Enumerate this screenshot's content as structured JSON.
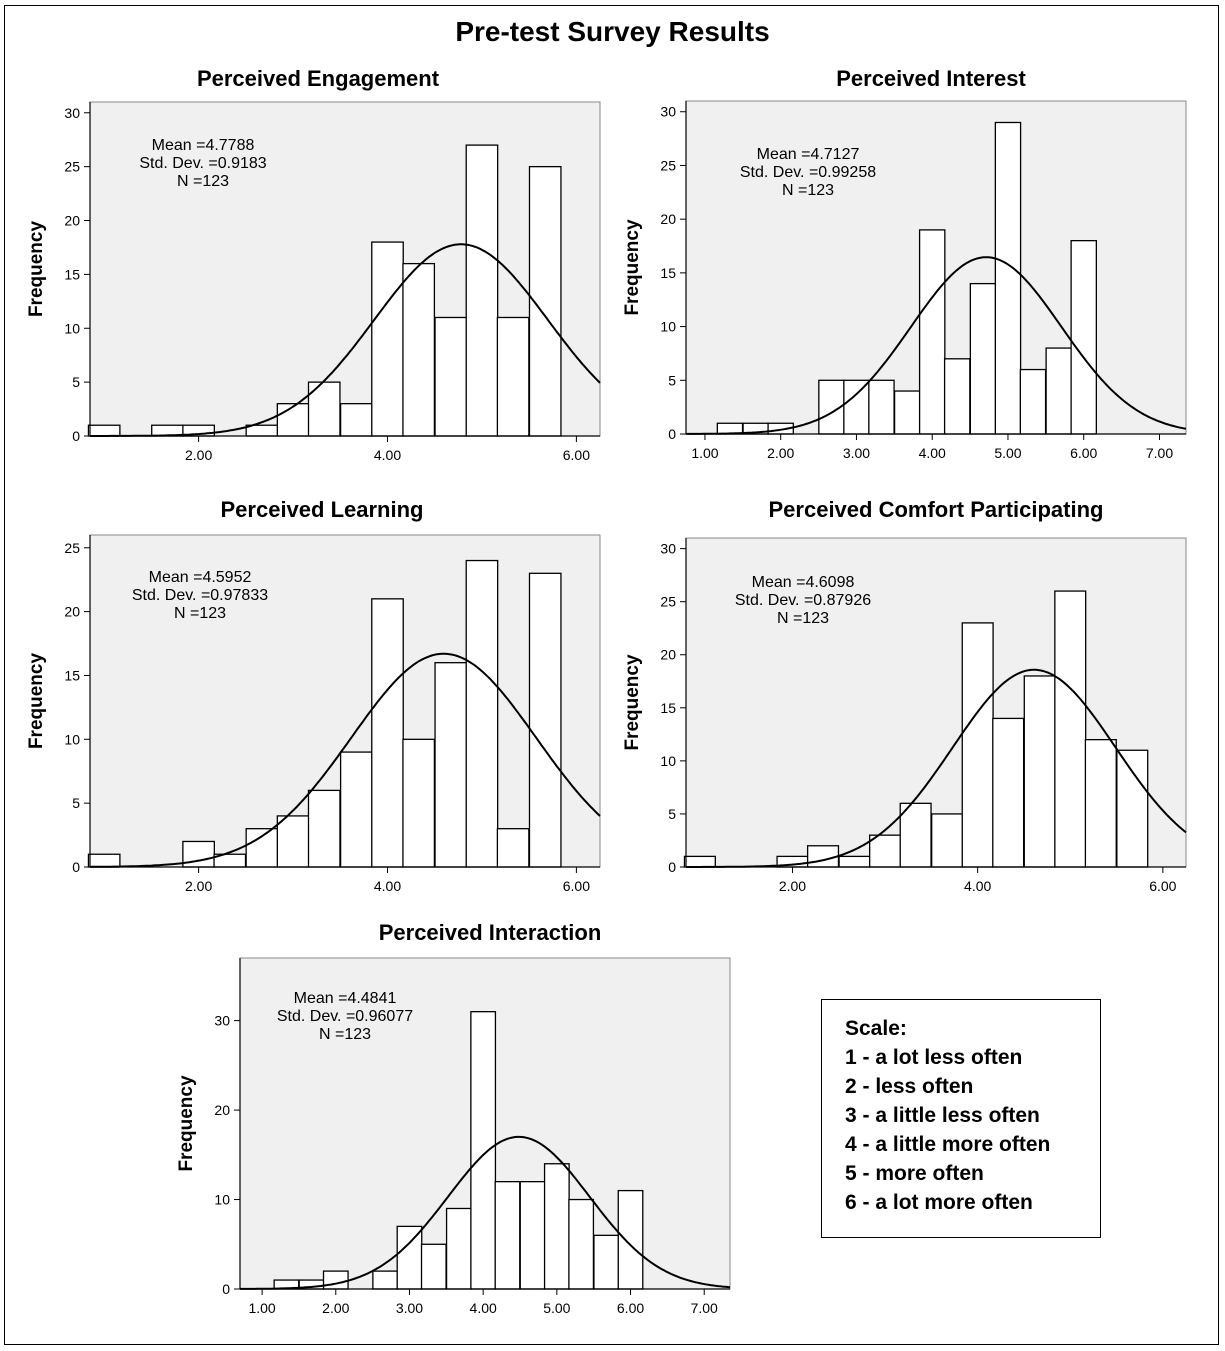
{
  "title": "Pre-test Survey Results",
  "chart_data": [
    {
      "type": "histogram",
      "title": "Perceived Engagement",
      "ylabel": "Frequency",
      "xlim": [
        0.85,
        6.25
      ],
      "ylim": [
        0,
        31
      ],
      "yticks": [
        0,
        5,
        10,
        15,
        20,
        25,
        30
      ],
      "xticks": [
        "2.00",
        "4.00",
        "6.00"
      ],
      "bin_width": 0.333,
      "bins": [
        {
          "x": 1.0,
          "count": 1
        },
        {
          "x": 1.67,
          "count": 1
        },
        {
          "x": 2.0,
          "count": 1
        },
        {
          "x": 2.67,
          "count": 1
        },
        {
          "x": 3.0,
          "count": 3
        },
        {
          "x": 3.33,
          "count": 5
        },
        {
          "x": 3.67,
          "count": 3
        },
        {
          "x": 4.0,
          "count": 18
        },
        {
          "x": 4.33,
          "count": 16
        },
        {
          "x": 4.67,
          "count": 11
        },
        {
          "x": 5.0,
          "count": 27
        },
        {
          "x": 5.33,
          "count": 11
        },
        {
          "x": 5.67,
          "count": 25
        }
      ],
      "stats": {
        "mean": "Mean =4.7788",
        "std": "Std. Dev. =0.9183",
        "n": "N =123"
      },
      "normal_curve": {
        "mean": 4.7788,
        "sd": 0.9183,
        "n": 123
      }
    },
    {
      "type": "histogram",
      "title": "Perceived Interest",
      "ylabel": "Frequency",
      "xlim": [
        0.75,
        7.35
      ],
      "ylim": [
        0,
        31
      ],
      "yticks": [
        0,
        5,
        10,
        15,
        20,
        25,
        30
      ],
      "xticks": [
        "1.00",
        "2.00",
        "3.00",
        "4.00",
        "5.00",
        "6.00",
        "7.00"
      ],
      "bin_width": 0.333,
      "bins": [
        {
          "x": 1.33,
          "count": 1
        },
        {
          "x": 1.67,
          "count": 1
        },
        {
          "x": 2.0,
          "count": 1
        },
        {
          "x": 2.67,
          "count": 5
        },
        {
          "x": 3.0,
          "count": 5
        },
        {
          "x": 3.33,
          "count": 5
        },
        {
          "x": 3.67,
          "count": 4
        },
        {
          "x": 4.0,
          "count": 19
        },
        {
          "x": 4.33,
          "count": 7
        },
        {
          "x": 4.67,
          "count": 14
        },
        {
          "x": 5.0,
          "count": 29
        },
        {
          "x": 5.33,
          "count": 6
        },
        {
          "x": 5.67,
          "count": 8
        },
        {
          "x": 6.0,
          "count": 18
        }
      ],
      "stats": {
        "mean": "Mean =4.7127",
        "std": "Std. Dev. =0.99258",
        "n": "N =123"
      },
      "normal_curve": {
        "mean": 4.7127,
        "sd": 0.99258,
        "n": 123
      }
    },
    {
      "type": "histogram",
      "title": "Perceived Learning",
      "ylabel": "Frequency",
      "xlim": [
        0.85,
        6.25
      ],
      "ylim": [
        0,
        26
      ],
      "yticks": [
        0,
        5,
        10,
        15,
        20,
        25
      ],
      "xticks": [
        "2.00",
        "4.00",
        "6.00"
      ],
      "bin_width": 0.333,
      "bins": [
        {
          "x": 1.0,
          "count": 1
        },
        {
          "x": 2.0,
          "count": 2
        },
        {
          "x": 2.33,
          "count": 1
        },
        {
          "x": 2.67,
          "count": 3
        },
        {
          "x": 3.0,
          "count": 4
        },
        {
          "x": 3.33,
          "count": 6
        },
        {
          "x": 3.67,
          "count": 9
        },
        {
          "x": 4.0,
          "count": 21
        },
        {
          "x": 4.33,
          "count": 10
        },
        {
          "x": 4.67,
          "count": 16
        },
        {
          "x": 5.0,
          "count": 24
        },
        {
          "x": 5.33,
          "count": 3
        },
        {
          "x": 5.67,
          "count": 23
        }
      ],
      "stats": {
        "mean": "Mean =4.5952",
        "std": "Std. Dev. =0.97833",
        "n": "N =123"
      },
      "normal_curve": {
        "mean": 4.5952,
        "sd": 0.97833,
        "n": 123
      }
    },
    {
      "type": "histogram",
      "title": "Perceived Comfort Participating",
      "ylabel": "Frequency",
      "xlim": [
        0.85,
        6.25
      ],
      "ylim": [
        0,
        31
      ],
      "yticks": [
        0,
        5,
        10,
        15,
        20,
        25,
        30
      ],
      "xticks": [
        "2.00",
        "4.00",
        "6.00"
      ],
      "bin_width": 0.333,
      "bins": [
        {
          "x": 1.0,
          "count": 1
        },
        {
          "x": 2.0,
          "count": 1
        },
        {
          "x": 2.33,
          "count": 2
        },
        {
          "x": 2.67,
          "count": 1
        },
        {
          "x": 3.0,
          "count": 3
        },
        {
          "x": 3.33,
          "count": 6
        },
        {
          "x": 3.67,
          "count": 5
        },
        {
          "x": 4.0,
          "count": 23
        },
        {
          "x": 4.33,
          "count": 14
        },
        {
          "x": 4.67,
          "count": 18
        },
        {
          "x": 5.0,
          "count": 26
        },
        {
          "x": 5.33,
          "count": 12
        },
        {
          "x": 5.67,
          "count": 11
        }
      ],
      "stats": {
        "mean": "Mean =4.6098",
        "std": "Std. Dev. =0.87926",
        "n": "N =123"
      },
      "normal_curve": {
        "mean": 4.6098,
        "sd": 0.87926,
        "n": 123
      }
    },
    {
      "type": "histogram",
      "title": "Perceived Interaction",
      "ylabel": "Frequency",
      "xlim": [
        0.7,
        7.35
      ],
      "ylim": [
        0,
        37
      ],
      "yticks": [
        0,
        10,
        20,
        30
      ],
      "xticks": [
        "1.00",
        "2.00",
        "3.00",
        "4.00",
        "5.00",
        "6.00",
        "7.00"
      ],
      "bin_width": 0.333,
      "bins": [
        {
          "x": 1.33,
          "count": 1
        },
        {
          "x": 1.67,
          "count": 1
        },
        {
          "x": 2.0,
          "count": 2
        },
        {
          "x": 2.67,
          "count": 2
        },
        {
          "x": 3.0,
          "count": 7
        },
        {
          "x": 3.33,
          "count": 5
        },
        {
          "x": 3.67,
          "count": 9
        },
        {
          "x": 4.0,
          "count": 31
        },
        {
          "x": 4.33,
          "count": 12
        },
        {
          "x": 4.67,
          "count": 12
        },
        {
          "x": 5.0,
          "count": 14
        },
        {
          "x": 5.33,
          "count": 10
        },
        {
          "x": 5.67,
          "count": 6
        },
        {
          "x": 6.0,
          "count": 11
        }
      ],
      "stats": {
        "mean": "Mean =4.4841",
        "std": "Std. Dev. =0.96077",
        "n": "N =123"
      },
      "normal_curve": {
        "mean": 4.4841,
        "sd": 0.96077,
        "n": 123
      }
    }
  ],
  "scale": {
    "title": "Scale:",
    "items": [
      "1 - a lot less often",
      "2 - less often",
      "3 - a little less often",
      "4 - a little more often",
      "5 - more often",
      "6 - a lot more often"
    ]
  },
  "colors": {
    "plot_bg": "#f0f0f0",
    "bar_fill": "#ffffff",
    "line": "#000000"
  }
}
